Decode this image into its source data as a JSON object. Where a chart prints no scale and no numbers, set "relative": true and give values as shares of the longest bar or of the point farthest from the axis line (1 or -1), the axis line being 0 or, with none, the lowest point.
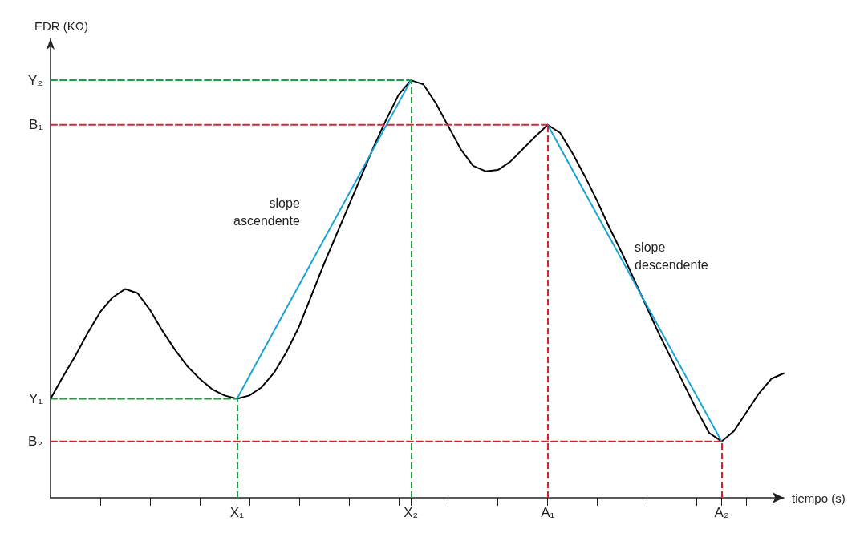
{
  "chart_data": {
    "type": "line",
    "relative": true,
    "xlabel": "tiempo (s)",
    "ylabel": "EDR (KΩ)",
    "grid": false,
    "marker": "none",
    "categories": [
      null,
      null,
      null,
      null,
      null,
      null,
      null,
      null,
      null,
      null,
      null,
      null,
      null,
      null,
      null,
      "X₁",
      null,
      null,
      null,
      null,
      null,
      null,
      null,
      null,
      null,
      null,
      null,
      null,
      null,
      "X₂",
      null,
      null,
      null,
      null,
      null,
      null,
      null,
      null,
      null,
      null,
      "A₁",
      null,
      null,
      null,
      null,
      null,
      null,
      null,
      null,
      null,
      null,
      null,
      null,
      null,
      "A₂",
      null,
      null,
      null,
      null,
      null
    ],
    "series": [
      {
        "color": "#000000",
        "line_style": "solid",
        "values": [
          0.237,
          0.29,
          0.34,
          0.395,
          0.445,
          0.48,
          0.5,
          0.49,
          0.45,
          0.4,
          0.355,
          0.315,
          0.285,
          0.26,
          0.245,
          0.237,
          0.245,
          0.265,
          0.3,
          0.35,
          0.41,
          0.485,
          0.56,
          0.63,
          0.7,
          0.77,
          0.84,
          0.905,
          0.965,
          1,
          0.99,
          0.945,
          0.89,
          0.835,
          0.795,
          0.782,
          0.785,
          0.805,
          0.835,
          0.865,
          0.893,
          0.874,
          0.825,
          0.77,
          0.71,
          0.645,
          0.585,
          0.52,
          0.455,
          0.39,
          0.33,
          0.27,
          0.21,
          0.155,
          0.135,
          0.16,
          0.205,
          0.25,
          0.285,
          0.298
        ]
      },
      {
        "name": "slope ascendente",
        "color": "#1aa3d9",
        "line_style": "solid",
        "x": [
          "X₁",
          "X₂"
        ],
        "values": [
          0.237,
          1
        ]
      },
      {
        "name": "slope descendente",
        "color": "#1aa3d9",
        "line_style": "solid",
        "x": [
          "A₁",
          "A₂"
        ],
        "values": [
          0.893,
          0.135
        ]
      },
      {
        "name": "Y₁",
        "color": "#1aa33a",
        "line_style": "dashed",
        "values": [
          0.237,
          null,
          null,
          null,
          null,
          null,
          null,
          null,
          null,
          null,
          null,
          null,
          null,
          null,
          null,
          0.237,
          null,
          null,
          null,
          null,
          null,
          null,
          null,
          null,
          null,
          null,
          null,
          null,
          null,
          null,
          null,
          null,
          null,
          null,
          null,
          null,
          null,
          null,
          null,
          null,
          null,
          null,
          null,
          null,
          null,
          null,
          null,
          null,
          null,
          null,
          null,
          null,
          null,
          null,
          null,
          null,
          null,
          null,
          null,
          null
        ]
      },
      {
        "name": "Y₂",
        "color": "#1aa33a",
        "line_style": "dashed",
        "values": [
          1,
          null,
          null,
          null,
          null,
          null,
          null,
          null,
          null,
          null,
          null,
          null,
          null,
          null,
          null,
          null,
          null,
          null,
          null,
          null,
          null,
          null,
          null,
          null,
          null,
          null,
          null,
          null,
          null,
          1,
          null,
          null,
          null,
          null,
          null,
          null,
          null,
          null,
          null,
          null,
          null,
          null,
          null,
          null,
          null,
          null,
          null,
          null,
          null,
          null,
          null,
          null,
          null,
          null,
          null,
          null,
          null,
          null,
          null,
          null
        ]
      },
      {
        "name": "B₁",
        "color": "#d9252a",
        "line_style": "dashed",
        "values": [
          0.893,
          null,
          null,
          null,
          null,
          null,
          null,
          null,
          null,
          null,
          null,
          null,
          null,
          null,
          null,
          null,
          null,
          null,
          null,
          null,
          null,
          null,
          null,
          null,
          null,
          null,
          null,
          null,
          null,
          null,
          null,
          null,
          null,
          null,
          null,
          null,
          null,
          null,
          null,
          null,
          0.893,
          null,
          null,
          null,
          null,
          null,
          null,
          null,
          null,
          null,
          null,
          null,
          null,
          null,
          null,
          null,
          null,
          null,
          null,
          null
        ]
      },
      {
        "name": "B₂",
        "color": "#d9252a",
        "line_style": "dashed",
        "values": [
          0.135,
          null,
          null,
          null,
          null,
          null,
          null,
          null,
          null,
          null,
          null,
          null,
          null,
          null,
          null,
          null,
          null,
          null,
          null,
          null,
          null,
          null,
          null,
          null,
          null,
          null,
          null,
          null,
          null,
          null,
          null,
          null,
          null,
          null,
          null,
          null,
          null,
          null,
          null,
          null,
          null,
          null,
          null,
          null,
          null,
          null,
          null,
          null,
          null,
          null,
          null,
          null,
          null,
          null,
          0.135,
          null,
          null,
          null,
          null,
          null
        ]
      }
    ],
    "ref_lines": [
      {
        "axis": "x",
        "value": "X₁",
        "color": "#1aa33a",
        "line_style": "dashed"
      },
      {
        "axis": "x",
        "value": "X₂",
        "color": "#1aa33a",
        "line_style": "dashed"
      },
      {
        "axis": "x",
        "value": "A₁",
        "color": "#d9252a",
        "line_style": "dashed"
      },
      {
        "axis": "x",
        "value": "A₂",
        "color": "#d9252a",
        "line_style": "dashed"
      }
    ]
  }
}
